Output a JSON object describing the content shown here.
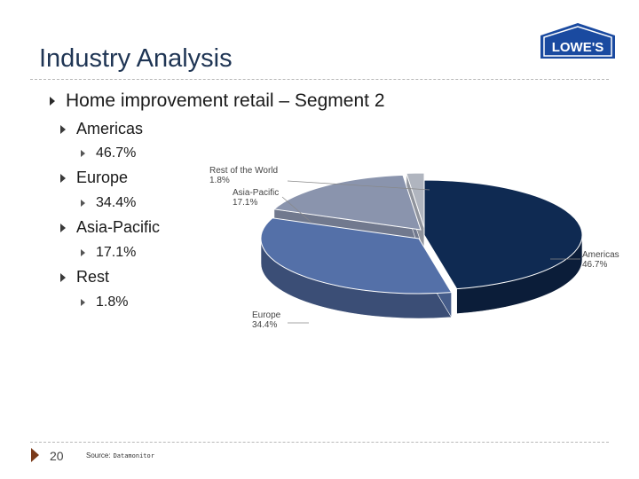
{
  "slide": {
    "title": "Industry Analysis",
    "page_number": "20",
    "source_label": "Source:",
    "source_name": "Datamonitor"
  },
  "logo": {
    "text": "LOWE'S",
    "color": "#1a4aa0"
  },
  "bullets": {
    "heading": "Home improvement retail – Segment 2",
    "items": [
      {
        "label": "Americas",
        "value": "46.7%"
      },
      {
        "label": "Europe",
        "value": "34.4%"
      },
      {
        "label": "Asia-Pacific",
        "value": "17.1%"
      },
      {
        "label": "Rest",
        "value": "1.8%"
      }
    ]
  },
  "chart_data": {
    "type": "pie",
    "style": "3d",
    "slices": [
      {
        "label": "Americas",
        "value": 46.7,
        "value_label": "46.7%",
        "color": "#0f2a52"
      },
      {
        "label": "Europe",
        "value": 34.4,
        "value_label": "34.4%",
        "color": "#5470a8"
      },
      {
        "label": "Asia-Pacific",
        "value": 17.1,
        "value_label": "17.1%",
        "color": "#8a94ad"
      },
      {
        "label": "Rest of the World",
        "value": 1.8,
        "value_label": "1.8%",
        "color": "#b0b5bf"
      }
    ]
  }
}
